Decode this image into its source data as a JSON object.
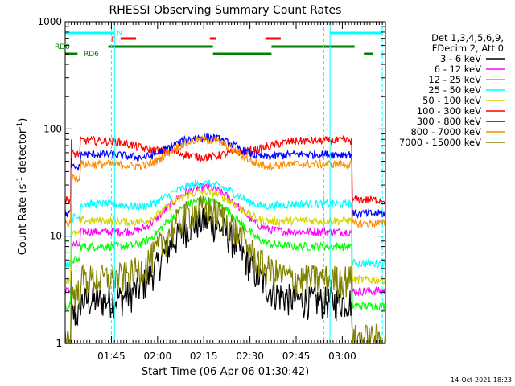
{
  "chart_data": {
    "type": "line",
    "title": "RHESSI Observing Summary Count Rates",
    "xlabel": "Start Time (06-Apr-06 01:30:42)",
    "ylabel_prefix": "Count Rate (s",
    "ylabel_sup1": "-1",
    "ylabel_mid": " detector",
    "ylabel_sup2": "-1",
    "ylabel_suffix": ")",
    "y_scale": "log",
    "ylim": [
      1,
      1000
    ],
    "y_ticks": [
      {
        "v": 1,
        "label": "1"
      },
      {
        "v": 10,
        "label": "10"
      },
      {
        "v": 100,
        "label": "100"
      },
      {
        "v": 1000,
        "label": "1000"
      }
    ],
    "xlim": [
      "01:30",
      "03:14"
    ],
    "x_ticks": [
      "01:45",
      "02:00",
      "02:15",
      "02:30",
      "02:45",
      "03:00"
    ],
    "legend_header": [
      "Det 1,3,4,5,6,9,",
      "FDecim 2, Att 0"
    ],
    "series": [
      {
        "name": "3 - 6 keV",
        "color": "#000000",
        "base": 2.5,
        "peak": 4.5
      },
      {
        "name": "6 - 12 keV",
        "color": "#ff00ff",
        "base": 11,
        "peak": 1.6
      },
      {
        "name": "12 - 25 keV",
        "color": "#00ff00",
        "base": 8,
        "peak": 1.7
      },
      {
        "name": "25 - 50 keV",
        "color": "#00ffff",
        "base": 20,
        "peak": 0.55
      },
      {
        "name": "50 - 100 keV",
        "color": "#d4d400",
        "base": 14,
        "peak": 0.85
      },
      {
        "name": "100 - 300 keV",
        "color": "#ff0000",
        "base": 78,
        "peak": -0.3
      },
      {
        "name": "300 - 800 keV",
        "color": "#0000ff",
        "base": 58,
        "peak": 0.45
      },
      {
        "name": "800 - 7000 keV",
        "color": "#ff8c00",
        "base": 47,
        "peak": 0.7
      },
      {
        "name": "7000 - 15000 keV",
        "color": "#808000",
        "base": 4,
        "peak": 3.5
      }
    ],
    "night_bars": [
      {
        "label": "N",
        "color": "#00ffff",
        "segments": [
          [
            "01:30",
            "01:46"
          ],
          [
            "02:56",
            "03:13"
          ]
        ]
      }
    ],
    "flare_bars": [
      {
        "label": "F",
        "color": "#ff0000",
        "segments": [
          [
            "01:48",
            "01:53"
          ],
          [
            "02:17",
            "02:19"
          ],
          [
            "02:35",
            "02:40"
          ]
        ]
      }
    ],
    "rd_bars": [
      {
        "label": "RD0",
        "color": "#008000",
        "segments": [
          [
            "01:44",
            "02:18"
          ],
          [
            "02:37",
            "03:04"
          ]
        ]
      },
      {
        "label": "RD6",
        "color": "#008000",
        "segments": [
          [
            "01:30",
            "01:34"
          ],
          [
            "02:18",
            "02:37"
          ],
          [
            "03:07",
            "03:10"
          ]
        ]
      }
    ],
    "saa_lines": [
      "01:46",
      "02:56"
    ],
    "saa_dashed": [
      "01:45",
      "02:54",
      "03:13"
    ],
    "timestamp": "14-Oct-2021 18:23"
  }
}
